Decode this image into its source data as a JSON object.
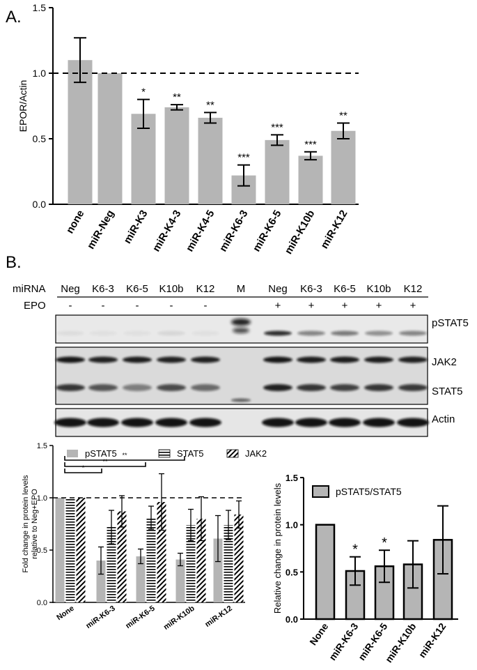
{
  "figure": {
    "panel_a_label": "A.",
    "panel_b_label": "B."
  },
  "blot": {
    "row_label_mirna": "miRNA",
    "row_label_epo": "EPO",
    "lanes": [
      {
        "mirna": "Neg",
        "epo": "-"
      },
      {
        "mirna": "K6-3",
        "epo": "-"
      },
      {
        "mirna": "K6-5",
        "epo": "-"
      },
      {
        "mirna": "K10b",
        "epo": "-"
      },
      {
        "mirna": "K12",
        "epo": "-"
      },
      {
        "mirna": "M",
        "epo": ""
      },
      {
        "mirna": "Neg",
        "epo": "+"
      },
      {
        "mirna": "K6-3",
        "epo": "+"
      },
      {
        "mirna": "K6-5",
        "epo": "+"
      },
      {
        "mirna": "K10b",
        "epo": "+"
      },
      {
        "mirna": "K12",
        "epo": "+"
      }
    ],
    "bands": [
      "pSTAT5",
      "JAK2",
      "STAT5",
      "Actin"
    ]
  },
  "chart_data": [
    {
      "type": "bar",
      "ylabel": "EPOR/Actin",
      "ylim": [
        0,
        1.5
      ],
      "yticks": [
        "0.0",
        "0.5",
        "1.0",
        "1.5"
      ],
      "reference_line": 1.0,
      "categories": [
        "none",
        "miR-Neg",
        "miR-K3",
        "miR-K4-3",
        "miR-K4-5",
        "miR-K6-3",
        "miR-K6-5",
        "miR-K10b",
        "miR-K12"
      ],
      "values": [
        1.1,
        1.0,
        0.69,
        0.74,
        0.66,
        0.22,
        0.49,
        0.37,
        0.56
      ],
      "errors": [
        0.17,
        0.0,
        0.11,
        0.02,
        0.04,
        0.08,
        0.04,
        0.03,
        0.06
      ],
      "significance": [
        "",
        "",
        "*",
        "**",
        "**",
        "***",
        "***",
        "***",
        "**"
      ],
      "bar_color": "#b5b5b5"
    },
    {
      "type": "bar",
      "ylabel": "Fold change in  protein levels relative to Neg+EPO",
      "ylim": [
        0,
        1.5
      ],
      "yticks": [
        "0.0",
        "0.5",
        "1.0",
        "1.5"
      ],
      "reference_line": 1.0,
      "categories": [
        "None",
        "miR-K6-3",
        "miR-K6-5",
        "miR-K10b",
        "miR-K12"
      ],
      "legend": [
        "pSTAT5",
        "STAT5",
        "JAK2"
      ],
      "legend_placement": "top",
      "series": [
        {
          "name": "pSTAT5",
          "values": [
            1.0,
            0.4,
            0.44,
            0.41,
            0.61
          ],
          "errors": [
            0,
            0.13,
            0.07,
            0.06,
            0.22
          ]
        },
        {
          "name": "STAT5",
          "values": [
            1.0,
            0.72,
            0.81,
            0.74,
            0.74
          ],
          "errors": [
            0,
            0.16,
            0.11,
            0.15,
            0.14
          ]
        },
        {
          "name": "JAK2",
          "values": [
            1.0,
            0.87,
            0.96,
            0.8,
            0.84
          ],
          "errors": [
            0,
            0.15,
            0.27,
            0.21,
            0.13
          ]
        }
      ],
      "brackets": [
        {
          "to": "miR-K6-3",
          "label": "*"
        },
        {
          "to": "miR-K6-5",
          "label": "**"
        },
        {
          "to": "miR-K10b",
          "label": "**"
        }
      ],
      "bar_color": "#b5b5b5"
    },
    {
      "type": "bar",
      "ylabel": "Relative change in protein levels",
      "ylim": [
        0,
        1.5
      ],
      "yticks": [
        "0.0",
        "0.5",
        "1.0",
        "1.5"
      ],
      "categories": [
        "None",
        "miR-K6-3",
        "miR-K6-5",
        "miR-K10b",
        "miR-K12"
      ],
      "legend": [
        "pSTAT5/STAT5"
      ],
      "values": [
        1.0,
        0.51,
        0.56,
        0.58,
        0.84
      ],
      "errors": [
        0,
        0.15,
        0.17,
        0.25,
        0.36
      ],
      "significance": [
        "",
        "*",
        "*",
        "",
        ""
      ],
      "bar_color": "#b5b5b5"
    }
  ]
}
